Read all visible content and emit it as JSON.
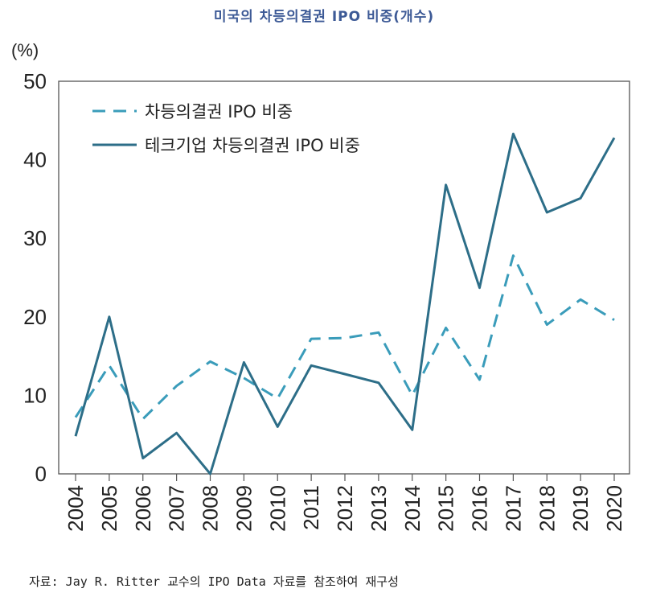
{
  "chart_data": {
    "type": "line",
    "title": "미국의 차등의결권 IPO 비중(개수)",
    "ylabel": "(%)",
    "xlabel": "",
    "ylim": [
      0,
      50
    ],
    "yticks": [
      0,
      10,
      20,
      30,
      40,
      50
    ],
    "categories": [
      "2004",
      "2005",
      "2006",
      "2007",
      "2008",
      "2009",
      "2010",
      "2011",
      "2012",
      "2013",
      "2014",
      "2015",
      "2016",
      "2017",
      "2018",
      "2019",
      "2020"
    ],
    "series": [
      {
        "name": "차등의결권 IPO 비중",
        "style": "dashed",
        "color": "#3a9cba",
        "values": [
          7.2,
          13.8,
          7.0,
          11.2,
          14.3,
          12.2,
          9.6,
          17.2,
          17.3,
          18.0,
          10.0,
          18.6,
          12.0,
          27.8,
          19.0,
          22.2,
          19.6
        ]
      },
      {
        "name": "테크기업 차등의결권 IPO 비중",
        "style": "solid",
        "color": "#2d6e88",
        "values": [
          4.8,
          20.0,
          2.0,
          5.2,
          0.0,
          14.2,
          6.0,
          13.8,
          12.7,
          11.6,
          5.6,
          36.8,
          23.7,
          43.3,
          33.3,
          35.1,
          42.8
        ]
      }
    ],
    "legend_position": "top-left",
    "grid": false
  },
  "source": "자료: Jay R. Ritter 교수의 IPO Data 자료를 참조하여 재구성"
}
